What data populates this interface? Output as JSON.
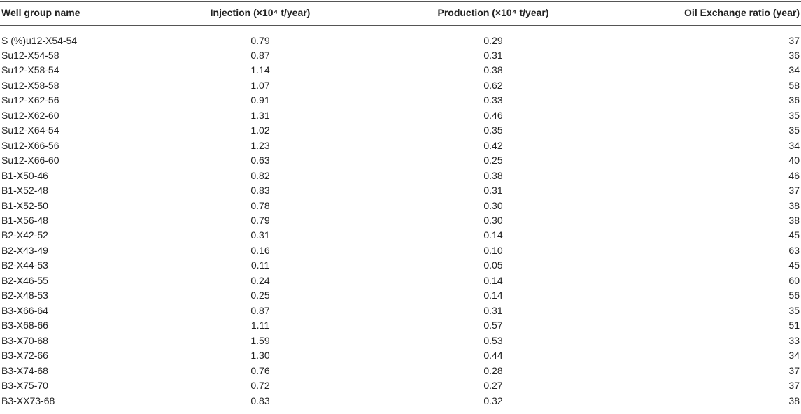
{
  "table": {
    "header": [
      "Well group name",
      "Injection (×10⁴ t/year)",
      "Production (×10⁴ t/year)",
      "Oil Exchange ratio (year)"
    ],
    "rows": [
      [
        "S (%)u12-X54-54",
        "0.79",
        "0.29",
        "37"
      ],
      [
        "Su12-X54-58",
        "0.87",
        "0.31",
        "36"
      ],
      [
        "Su12-X58-54",
        "1.14",
        "0.38",
        "34"
      ],
      [
        "Su12-X58-58",
        "1.07",
        "0.62",
        "58"
      ],
      [
        "Su12-X62-56",
        "0.91",
        "0.33",
        "36"
      ],
      [
        "Su12-X62-60",
        "1.31",
        "0.46",
        "35"
      ],
      [
        "Su12-X64-54",
        "1.02",
        "0.35",
        "35"
      ],
      [
        "Su12-X66-56",
        "1.23",
        "0.42",
        "34"
      ],
      [
        "Su12-X66-60",
        "0.63",
        "0.25",
        "40"
      ],
      [
        "B1-X50-46",
        "0.82",
        "0.38",
        "46"
      ],
      [
        "B1-X52-48",
        "0.83",
        "0.31",
        "37"
      ],
      [
        "B1-X52-50",
        "0.78",
        "0.30",
        "38"
      ],
      [
        "B1-X56-48",
        "0.79",
        "0.30",
        "38"
      ],
      [
        "B2-X42-52",
        "0.31",
        "0.14",
        "45"
      ],
      [
        "B2-X43-49",
        "0.16",
        "0.10",
        "63"
      ],
      [
        "B2-X44-53",
        "0.11",
        "0.05",
        "45"
      ],
      [
        "B2-X46-55",
        "0.24",
        "0.14",
        "60"
      ],
      [
        "B2-X48-53",
        "0.25",
        "0.14",
        "56"
      ],
      [
        "B3-X66-64",
        "0.87",
        "0.31",
        "35"
      ],
      [
        "B3-X68-66",
        "1.11",
        "0.57",
        "51"
      ],
      [
        "B3-X70-68",
        "1.59",
        "0.53",
        "33"
      ],
      [
        "B3-X72-66",
        "1.30",
        "0.44",
        "34"
      ],
      [
        "B3-X74-68",
        "0.76",
        "0.28",
        "37"
      ],
      [
        "B3-X75-70",
        "0.72",
        "0.27",
        "37"
      ],
      [
        "B3-XX73-68",
        "0.83",
        "0.32",
        "38"
      ]
    ]
  }
}
